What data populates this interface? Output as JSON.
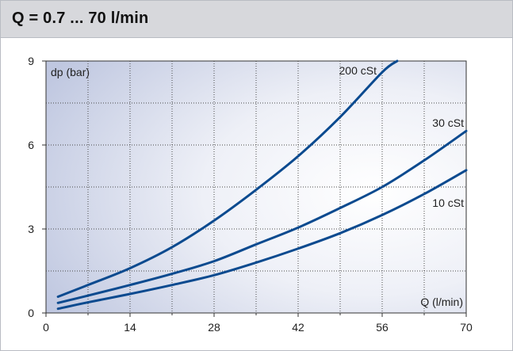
{
  "header": {
    "title": "Q = 0.7 ... 70 l/min"
  },
  "chart_data": {
    "type": "line",
    "title": "Q = 0.7 ... 70 l/min",
    "xlabel": "Q (l/min)",
    "ylabel": "dp (bar)",
    "xlim": [
      0,
      70
    ],
    "ylim": [
      0,
      9
    ],
    "xticks": [
      0,
      14,
      28,
      42,
      56,
      70
    ],
    "yticks": [
      0,
      3,
      6,
      9
    ],
    "grid": true,
    "series": [
      {
        "name": "200 cSt",
        "x": [
          2,
          7,
          14,
          21,
          28,
          35,
          42,
          49,
          56,
          58.5
        ],
        "y": [
          0.58,
          1.0,
          1.6,
          2.35,
          3.3,
          4.4,
          5.6,
          7.0,
          8.6,
          9.0
        ]
      },
      {
        "name": "30 cSt",
        "x": [
          2,
          7,
          14,
          21,
          28,
          35,
          42,
          49,
          56,
          63,
          70
        ],
        "y": [
          0.36,
          0.62,
          1.0,
          1.4,
          1.85,
          2.45,
          3.05,
          3.75,
          4.5,
          5.45,
          6.5
        ]
      },
      {
        "name": "10 cSt",
        "x": [
          2,
          7,
          14,
          21,
          28,
          35,
          42,
          49,
          56,
          63,
          70
        ],
        "y": [
          0.15,
          0.38,
          0.68,
          1.0,
          1.35,
          1.8,
          2.3,
          2.85,
          3.5,
          4.25,
          5.1
        ]
      }
    ]
  },
  "colors": {
    "line": "#0b4a8f",
    "plot_bg_light": "#ffffff",
    "plot_bg_dark": "#bfc7e0",
    "grid": "#4a4a4a",
    "header_bg": "#d7d8dc"
  }
}
